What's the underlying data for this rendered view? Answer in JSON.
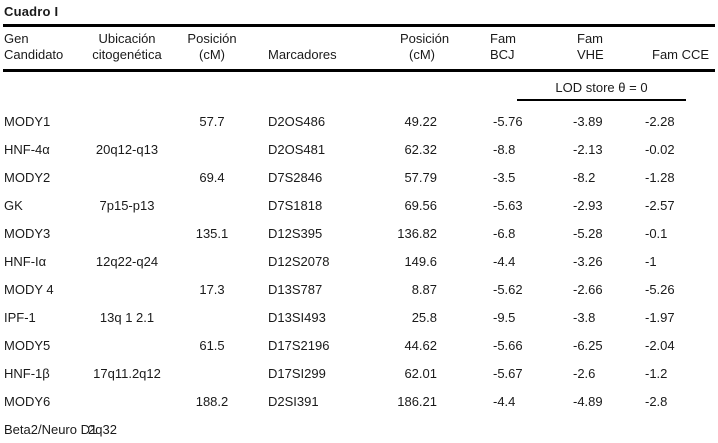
{
  "title": "Cuadro I",
  "table": {
    "columns": [
      {
        "id": "gen-candidato",
        "label": "Gen\nCandidato"
      },
      {
        "id": "ubicacion-citogenetica",
        "label": "Ubicación\ncitogenética"
      },
      {
        "id": "posicion-cm-gen",
        "label": "Posición\n(cM)"
      },
      {
        "id": "marcadores",
        "label": "Marcadores"
      },
      {
        "id": "posicion-cm-marcador",
        "label": "Posición\n(cM)"
      },
      {
        "id": "fam-bcj",
        "label": "Fam BCJ"
      },
      {
        "id": "fam-vhe",
        "label": "Fam VHE"
      },
      {
        "id": "fam-cce",
        "label": "Fam CCE"
      }
    ],
    "lod_subheader": "LOD store θ = 0",
    "rows": [
      {
        "cells": [
          "MODY1",
          "",
          "57.7",
          "D2OS486",
          "49.22",
          "-5.76",
          "-3.89",
          "-2.28"
        ]
      },
      {
        "cells": [
          "HNF-4α",
          "20q12-q13",
          "",
          "D2OS481",
          "62.32",
          "-8.8",
          "-2.13",
          "-0.02"
        ]
      },
      {
        "cells": [
          "MODY2",
          "",
          "69.4",
          "D7S2846",
          "57.79",
          "-3.5",
          "-8.2",
          "-1.28"
        ]
      },
      {
        "cells": [
          "GK",
          "7p15-p13",
          "",
          "D7S1818",
          "69.56",
          "-5.63",
          "-2.93",
          "-2.57"
        ]
      },
      {
        "cells": [
          "MODY3",
          "",
          "135.1",
          "D12S395",
          "136.82",
          "-6.8",
          "-5.28",
          "-0.1"
        ]
      },
      {
        "cells": [
          "HNF-Iα",
          "12q22-q24",
          "",
          "D12S2078",
          "149.6",
          "-4.4",
          "-3.26",
          "-1"
        ]
      },
      {
        "cells": [
          "MODY 4",
          "",
          "17.3",
          "D13S787",
          "8.87",
          "-5.62",
          "-2.66",
          "-5.26"
        ]
      },
      {
        "cells": [
          "IPF-1",
          "13q 1 2.1",
          "",
          "D13SI493",
          "25.8",
          "-9.5",
          "-3.8",
          "-1.97"
        ]
      },
      {
        "cells": [
          "MODY5",
          "",
          "61.5",
          "D17S2196",
          "44.62",
          "-5.66",
          "-6.25",
          "-2.04"
        ]
      },
      {
        "cells": [
          "HNF-1β",
          "17q11.2q12",
          "",
          "D17SI299",
          "62.01",
          "-5.67",
          "-2.6",
          "-1.2"
        ]
      },
      {
        "cells": [
          "MODY6",
          "",
          "188.2",
          "D2SI391",
          "186.21",
          "-4.4",
          "-4.89",
          "-2.8"
        ]
      },
      {
        "cells": [
          "Beta2/Neuro D1",
          "2q32",
          "",
          "",
          "",
          "",
          "",
          ""
        ]
      }
    ]
  },
  "colors": {
    "text": "#1a1a1a",
    "rule": "#000000",
    "background": "#ffffff"
  }
}
